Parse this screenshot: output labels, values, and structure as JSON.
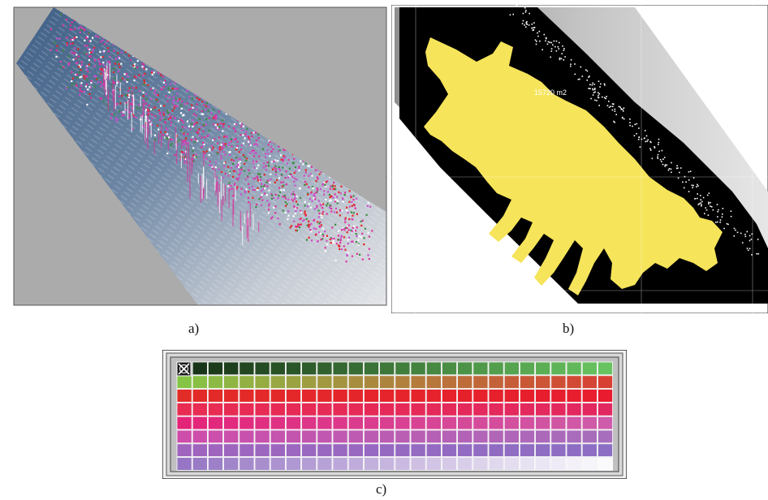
{
  "figure": {
    "captions": {
      "a": "a)",
      "b": "b)",
      "c": "c)"
    }
  },
  "panel_b": {
    "area_label": "15720 m2"
  },
  "palette": {
    "colors": {
      "background_gray": "#ababab",
      "water_blue": "#4f6e92",
      "mask_yellow": "#f6e45a",
      "mask_black": "#000000",
      "point_magenta": "#e0309c",
      "point_red": "#e8241e",
      "point_green": "#3c8a3c"
    },
    "selected_cell": "close-icon"
  }
}
